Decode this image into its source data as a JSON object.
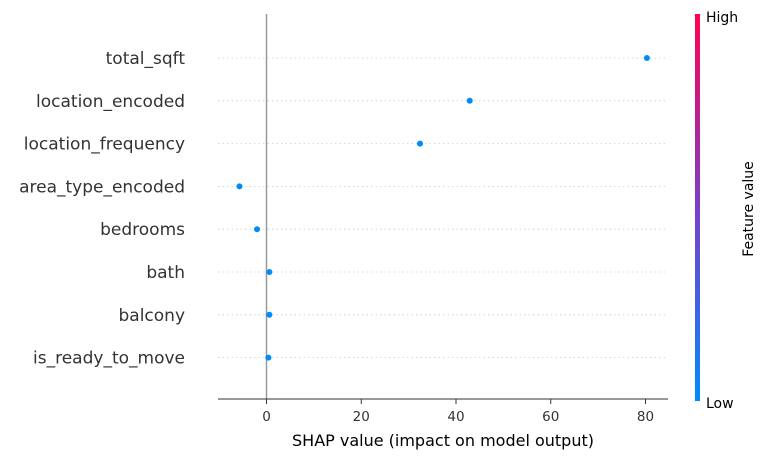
{
  "chart_data": {
    "type": "scatter",
    "xlabel": "SHAP value (impact on model output)",
    "xlim": [
      -10,
      85
    ],
    "x_ticks": [
      0,
      20,
      40,
      60,
      80
    ],
    "categories": [
      "total_sqft",
      "location_encoded",
      "location_frequency",
      "area_type_encoded",
      "bedrooms",
      "bath",
      "balcony",
      "is_ready_to_move"
    ],
    "series": [
      {
        "values": [
          80.3,
          42.9,
          32.4,
          -5.7,
          -2.0,
          0.6,
          0.6,
          0.4
        ]
      }
    ],
    "point_color": "#008bfb",
    "zero_line": true,
    "colorbar": {
      "label": "Feature value",
      "high_label": "High",
      "low_label": "Low",
      "high_color": "#ff0052",
      "low_color": "#008bfb"
    }
  }
}
